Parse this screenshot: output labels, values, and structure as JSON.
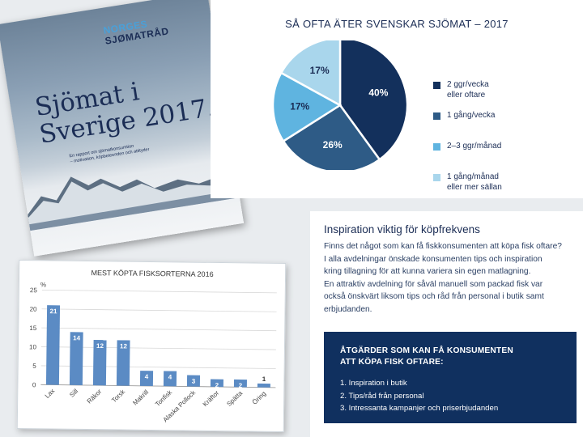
{
  "cover": {
    "logo_line1": "NORGES",
    "logo_line2": "SJØMATRÅD",
    "title_line1": "Sjömat i",
    "title_line2": "Sverige 2017.",
    "subtitle_lines": [
      "En rapport om sjömatkonsumtion",
      "– motivation, köpbeteenden och attityder"
    ]
  },
  "chart_data": [
    {
      "type": "pie",
      "title": "SÅ OFTA ÄTER SVENSKAR SJÖMAT – 2017",
      "slices": [
        {
          "label": "2 ggr/vecka\neller oftare",
          "value": 40,
          "display": "40%",
          "color": "#13305c"
        },
        {
          "label": "1 gång/vecka",
          "value": 26,
          "display": "26%",
          "color": "#2e5b86"
        },
        {
          "label": "2–3 ggr/månad",
          "value": 17,
          "display": "17%",
          "color": "#5fb4e0"
        },
        {
          "label": "1 gång/månad\neller mer sällan",
          "value": 17,
          "display": "17%",
          "color": "#a9d6ec"
        }
      ]
    },
    {
      "type": "bar",
      "title": "MEST KÖPTA FISKSORTERNA 2016",
      "ylabel": "%",
      "ylim": [
        0,
        25
      ],
      "yticks": [
        0,
        5,
        10,
        15,
        20,
        25
      ],
      "categories": [
        "Lax",
        "Sill",
        "Räkor",
        "Torsk",
        "Makrill",
        "Tonfisk",
        "Alaska Pollock",
        "Kräftor",
        "Spätta",
        "Öring"
      ],
      "values": [
        21,
        14,
        12,
        12,
        4,
        4,
        3,
        2,
        2,
        1
      ],
      "bar_color": "#5b8bc4",
      "grid": true
    }
  ],
  "article": {
    "heading": "Inspiration viktig för köpfrekvens",
    "body_lines": [
      "Finns det något som kan få fiskkonsumenten att köpa fisk oftare?",
      "I alla avdelningar önskade konsumenten tips och inspiration",
      "kring tillagning för att kunna variera sin egen matlagning.",
      "En attraktiv avdelning för såväl manuell som packad fisk var",
      "också önskvärt liksom tips och råd från personal i butik samt",
      "erbjudanden."
    ],
    "measures_title_lines": [
      "ÅTGÄRDER SOM KAN FÅ KONSUMENTEN",
      "ATT KÖPA FISK OFTARE:"
    ],
    "measures": [
      "1. Inspiration i butik",
      "2. Tips/råd från personal",
      "3. Intressanta kampanjer och priserbjudanden"
    ]
  }
}
